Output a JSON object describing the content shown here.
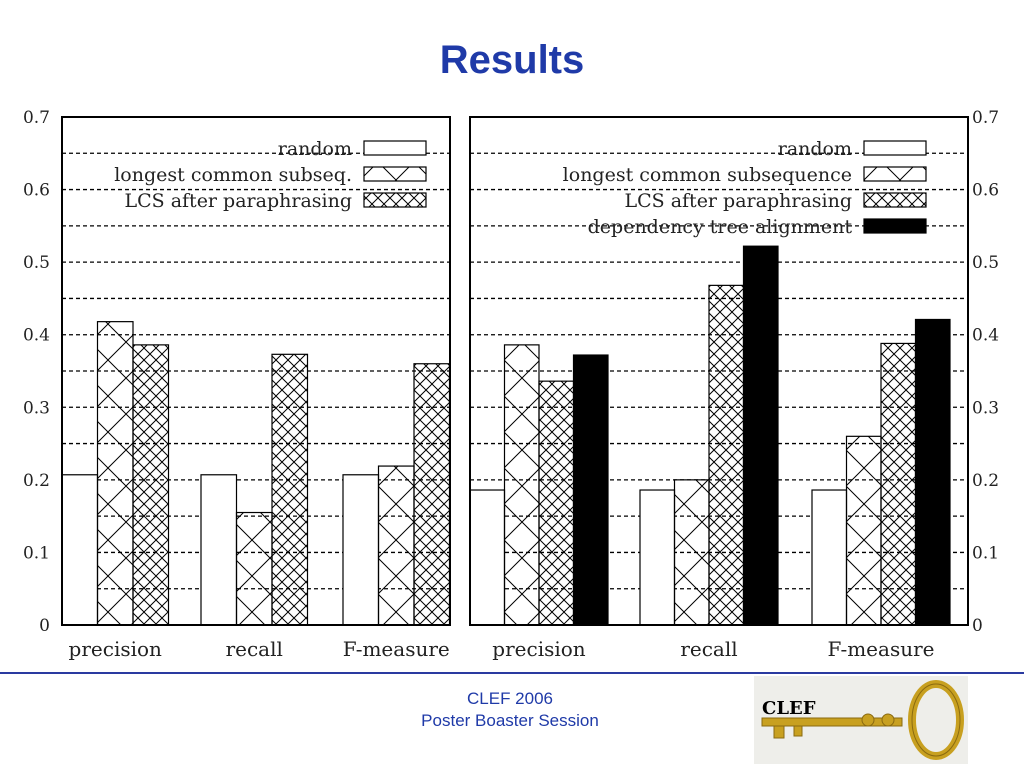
{
  "slide": {
    "title": "Results"
  },
  "footer": {
    "line1": "CLEF 2006",
    "line2": "Poster Boaster Session"
  },
  "logo": {
    "text": "CLEF"
  },
  "colors": {
    "title": "#1f3aa8",
    "footer_rule": "#2a3aa0",
    "dark_bar": "#000000",
    "logo_key": "#c8a020"
  },
  "chart_data": [
    {
      "type": "bar",
      "categories": [
        "precision",
        "recall",
        "F-measure"
      ],
      "series": [
        {
          "name": "random",
          "pattern": "white",
          "values": [
            0.207,
            0.207,
            0.207
          ]
        },
        {
          "name": "longest common subseq.",
          "pattern": "cross",
          "values": [
            0.418,
            0.155,
            0.219
          ]
        },
        {
          "name": "LCS after paraphrasing",
          "pattern": "dense-cross",
          "values": [
            0.386,
            0.373,
            0.36
          ]
        }
      ],
      "ylim": [
        0,
        0.7
      ],
      "yticks": [
        "0",
        "0.1",
        "0.2",
        "0.3",
        "0.4",
        "0.5",
        "0.6",
        "0.7"
      ],
      "legend_position": "top-right",
      "grid": "dashed-horizontal"
    },
    {
      "type": "bar",
      "categories": [
        "precision",
        "recall",
        "F-measure"
      ],
      "series": [
        {
          "name": "random",
          "pattern": "white",
          "values": [
            0.186,
            0.186,
            0.186
          ]
        },
        {
          "name": "longest common subsequence",
          "pattern": "cross",
          "values": [
            0.386,
            0.2,
            0.26
          ]
        },
        {
          "name": "LCS after paraphrasing",
          "pattern": "dense-cross",
          "values": [
            0.336,
            0.468,
            0.388
          ]
        },
        {
          "name": "dependency tree alignment",
          "pattern": "black",
          "values": [
            0.372,
            0.522,
            0.421
          ]
        }
      ],
      "ylim": [
        0,
        0.7
      ],
      "yticks": [
        "0",
        "0.1",
        "0.2",
        "0.3",
        "0.4",
        "0.5",
        "0.6",
        "0.7"
      ],
      "legend_position": "top-right",
      "grid": "dashed-horizontal"
    }
  ]
}
